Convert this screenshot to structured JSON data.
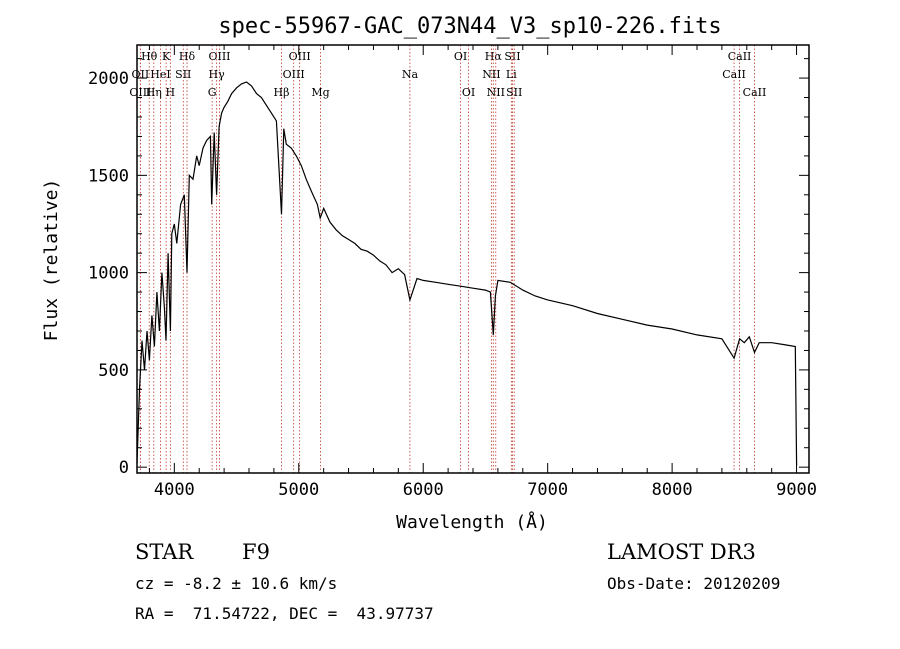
{
  "chart_data": {
    "type": "line",
    "title": "spec-55967-GAC_073N44_V3_sp10-226.fits",
    "xlabel": "Wavelength (Å)",
    "ylabel": "Flux (relative)",
    "xlim": [
      3700,
      9100
    ],
    "ylim": [
      -30,
      2170
    ],
    "xticks": [
      4000,
      5000,
      6000,
      7000,
      8000,
      9000
    ],
    "yticks": [
      0,
      500,
      1000,
      1500,
      2000
    ],
    "spectrum": {
      "name": "flux",
      "x": [
        3700,
        3720,
        3740,
        3760,
        3780,
        3800,
        3820,
        3840,
        3860,
        3880,
        3900,
        3920,
        3933,
        3950,
        3968,
        3980,
        4000,
        4020,
        4050,
        4080,
        4102,
        4120,
        4150,
        4180,
        4200,
        4230,
        4260,
        4290,
        4300,
        4320,
        4340,
        4360,
        4380,
        4400,
        4430,
        4460,
        4500,
        4540,
        4580,
        4620,
        4660,
        4700,
        4740,
        4780,
        4820,
        4861,
        4880,
        4900,
        4940,
        4980,
        5020,
        5060,
        5100,
        5150,
        5172,
        5200,
        5250,
        5300,
        5350,
        5400,
        5450,
        5500,
        5550,
        5600,
        5650,
        5700,
        5750,
        5800,
        5850,
        5893,
        5950,
        6000,
        6100,
        6200,
        6300,
        6400,
        6500,
        6540,
        6563,
        6580,
        6600,
        6700,
        6800,
        6900,
        7000,
        7200,
        7400,
        7600,
        7800,
        8000,
        8200,
        8400,
        8498,
        8542,
        8580,
        8620,
        8662,
        8700,
        8800,
        8900,
        8990,
        9000
      ],
      "y": [
        20,
        400,
        650,
        500,
        700,
        550,
        780,
        620,
        900,
        700,
        1000,
        820,
        650,
        1100,
        700,
        1200,
        1250,
        1150,
        1350,
        1400,
        1000,
        1500,
        1480,
        1600,
        1550,
        1640,
        1680,
        1700,
        1350,
        1720,
        1400,
        1750,
        1820,
        1850,
        1880,
        1920,
        1950,
        1970,
        1980,
        1960,
        1920,
        1900,
        1860,
        1820,
        1780,
        1300,
        1740,
        1660,
        1640,
        1600,
        1550,
        1480,
        1420,
        1350,
        1280,
        1330,
        1260,
        1220,
        1190,
        1170,
        1150,
        1120,
        1110,
        1090,
        1060,
        1040,
        1000,
        1020,
        990,
        860,
        970,
        960,
        950,
        940,
        930,
        920,
        910,
        900,
        680,
        880,
        960,
        950,
        910,
        880,
        860,
        830,
        790,
        760,
        730,
        710,
        680,
        660,
        560,
        660,
        640,
        670,
        590,
        640,
        640,
        630,
        620,
        10
      ]
    },
    "lines": [
      {
        "label": "Hθ",
        "x": 3798,
        "row": 0
      },
      {
        "label": "K",
        "x": 3934,
        "row": 0
      },
      {
        "label": "Hδ",
        "x": 4102,
        "row": 0
      },
      {
        "label": "OIII",
        "x": 4363,
        "row": 0
      },
      {
        "label": "OIII",
        "x": 5007,
        "row": 0
      },
      {
        "label": "OI",
        "x": 6300,
        "row": 0
      },
      {
        "label": "Hα",
        "x": 6563,
        "row": 0
      },
      {
        "label": "SII",
        "x": 6717,
        "row": 0
      },
      {
        "label": "CaII",
        "x": 8542,
        "row": 0
      },
      {
        "label": "OII",
        "x": 3727,
        "row": 1
      },
      {
        "label": "HeI",
        "x": 3889,
        "row": 1
      },
      {
        "label": "SII",
        "x": 4072,
        "row": 1
      },
      {
        "label": "Hγ",
        "x": 4340,
        "row": 1
      },
      {
        "label": "OIII",
        "x": 4959,
        "row": 1
      },
      {
        "label": "Na",
        "x": 5893,
        "row": 1
      },
      {
        "label": "NII",
        "x": 6548,
        "row": 1
      },
      {
        "label": "Li",
        "x": 6708,
        "row": 1
      },
      {
        "label": "CaII",
        "x": 8498,
        "row": 1
      },
      {
        "label": "OIII",
        "x": 3727,
        "row": 2
      },
      {
        "label": "Hη",
        "x": 3835,
        "row": 2
      },
      {
        "label": "H",
        "x": 3968,
        "row": 2
      },
      {
        "label": "G",
        "x": 4304,
        "row": 2
      },
      {
        "label": "Hβ",
        "x": 4861,
        "row": 2
      },
      {
        "label": "Mg",
        "x": 5175,
        "row": 2
      },
      {
        "label": "OI",
        "x": 6364,
        "row": 2
      },
      {
        "label": "NII",
        "x": 6583,
        "row": 2
      },
      {
        "label": "SII",
        "x": 6731,
        "row": 2
      },
      {
        "label": "CaII",
        "x": 8662,
        "row": 2
      }
    ]
  },
  "info": {
    "object_class": "STAR",
    "subclass": "F9",
    "survey": "LAMOST DR3",
    "cz": "cz = -8.2 ± 10.6 km/s",
    "obs_date": "Obs-Date: 20120209",
    "coords": "RA =  71.54722, DEC =  43.97737"
  },
  "colors": {
    "line_marker": "#c0392b",
    "spectrum": "#000000"
  }
}
